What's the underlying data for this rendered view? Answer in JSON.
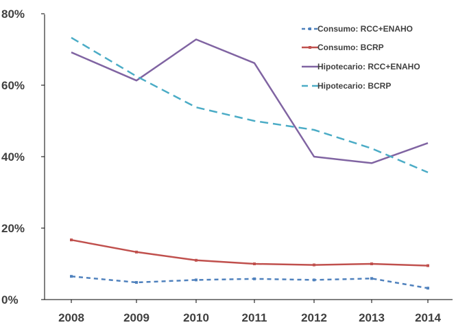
{
  "chart_data": {
    "type": "line",
    "title": "",
    "xlabel": "",
    "ylabel": "",
    "categories": [
      "2008",
      "2009",
      "2010",
      "2011",
      "2012",
      "2013",
      "2014"
    ],
    "yticks": [
      "0%",
      "20%",
      "40%",
      "60%",
      "80%"
    ],
    "ylim": [
      0,
      80
    ],
    "grid": false,
    "legend_position": "top-right",
    "series": [
      {
        "name": "Consumo: RCC+ENAHO",
        "values": [
          6.5,
          4.8,
          5.5,
          5.8,
          5.5,
          5.9,
          3.2
        ],
        "color": "#4f81bd",
        "style": "dashed",
        "markers": true
      },
      {
        "name": "Consumo: BCRP",
        "values": [
          16.7,
          13.3,
          11.0,
          10.0,
          9.7,
          10.0,
          9.5
        ],
        "color": "#c0504d",
        "style": "solid",
        "markers": true
      },
      {
        "name": "Hipotecario: RCC+ENAHO",
        "values": [
          69.2,
          61.3,
          72.8,
          66.2,
          40.0,
          38.2,
          43.8
        ],
        "color": "#8064a2",
        "style": "solid",
        "markers": false
      },
      {
        "name": "Hipotecario: BCRP",
        "values": [
          73.3,
          62.5,
          53.8,
          50.0,
          47.5,
          42.3,
          35.6
        ],
        "color": "#4bacc6",
        "style": "dashed",
        "markers": false
      }
    ]
  }
}
